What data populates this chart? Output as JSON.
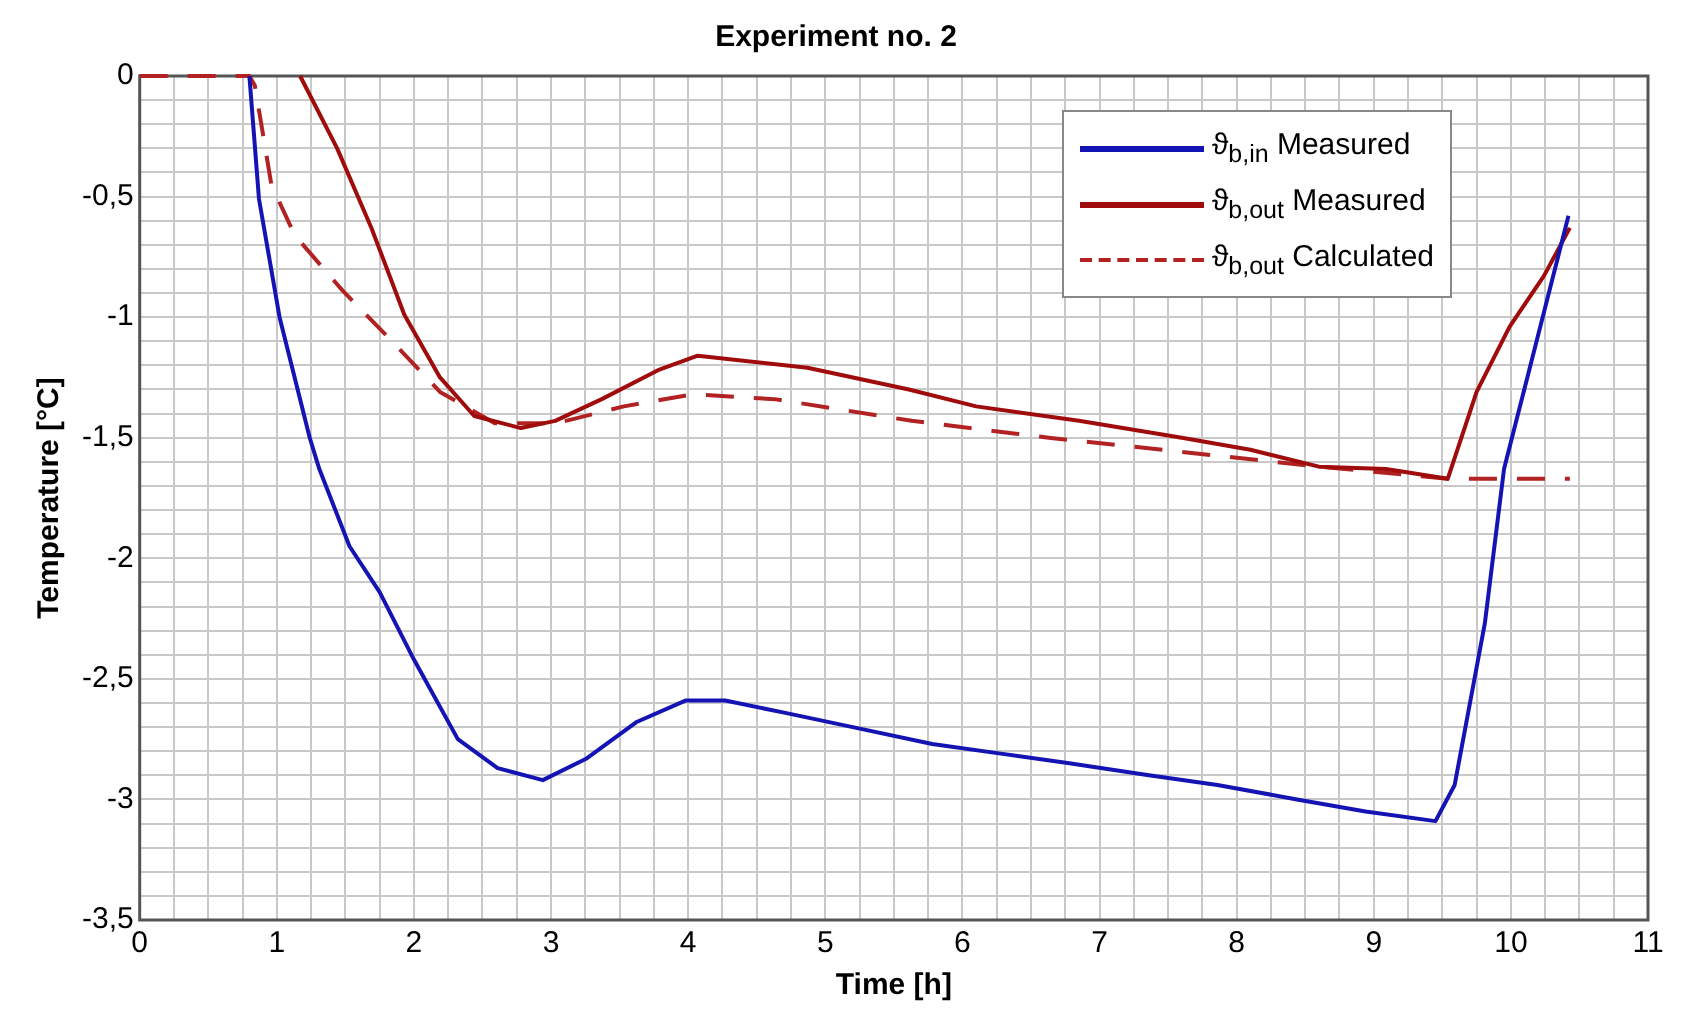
{
  "chart_data": {
    "type": "line",
    "title": "Experiment no. 2",
    "xlabel": "Time [h]",
    "ylabel": "Temperature [°C]",
    "xlim": [
      0,
      11
    ],
    "ylim": [
      -3.5,
      0
    ],
    "xticks": [
      0,
      {
        "value": 0.25,
        "label": null
      },
      {
        "value": 0.5,
        "label": null
      },
      {
        "value": 0.75,
        "label": null
      },
      1,
      {
        "value": 1.25,
        "label": null
      },
      {
        "value": 1.5,
        "label": null
      },
      {
        "value": 1.75,
        "label": null
      },
      2,
      {
        "value": 2.25,
        "label": null
      },
      {
        "value": 2.5,
        "label": null
      },
      {
        "value": 2.75,
        "label": null
      },
      3,
      {
        "value": 3.25,
        "label": null
      },
      {
        "value": 3.5,
        "label": null
      },
      {
        "value": 3.75,
        "label": null
      },
      4,
      {
        "value": 4.25,
        "label": null
      },
      {
        "value": 4.5,
        "label": null
      },
      {
        "value": 4.75,
        "label": null
      },
      5,
      {
        "value": 5.25,
        "label": null
      },
      {
        "value": 5.5,
        "label": null
      },
      {
        "value": 5.75,
        "label": null
      },
      6,
      {
        "value": 6.25,
        "label": null
      },
      {
        "value": 6.5,
        "label": null
      },
      {
        "value": 6.75,
        "label": null
      },
      7,
      {
        "value": 7.25,
        "label": null
      },
      {
        "value": 7.5,
        "label": null
      },
      {
        "value": 7.75,
        "label": null
      },
      8,
      {
        "value": 8.25,
        "label": null
      },
      {
        "value": 8.5,
        "label": null
      },
      {
        "value": 8.75,
        "label": null
      },
      9,
      {
        "value": 9.25,
        "label": null
      },
      {
        "value": 9.5,
        "label": null
      },
      {
        "value": 9.75,
        "label": null
      },
      10,
      {
        "value": 10.25,
        "label": null
      },
      {
        "value": 10.5,
        "label": null
      },
      {
        "value": 10.75,
        "label": null
      },
      11
    ],
    "yticks": [
      {
        "value": -3.5,
        "label": "-3,5"
      },
      {
        "value": -3.4,
        "label": null
      },
      {
        "value": -3.3,
        "label": null
      },
      {
        "value": -3.2,
        "label": null
      },
      {
        "value": -3.1,
        "label": null
      },
      {
        "value": -3,
        "label": "-3"
      },
      {
        "value": -2.9,
        "label": null
      },
      {
        "value": -2.8,
        "label": null
      },
      {
        "value": -2.7,
        "label": null
      },
      {
        "value": -2.6,
        "label": null
      },
      {
        "value": -2.5,
        "label": "-2,5"
      },
      {
        "value": -2.4,
        "label": null
      },
      {
        "value": -2.3,
        "label": null
      },
      {
        "value": -2.2,
        "label": null
      },
      {
        "value": -2.1,
        "label": null
      },
      {
        "value": -2,
        "label": "-2"
      },
      {
        "value": -1.9,
        "label": null
      },
      {
        "value": -1.8,
        "label": null
      },
      {
        "value": -1.7,
        "label": null
      },
      {
        "value": -1.6,
        "label": null
      },
      {
        "value": -1.5,
        "label": "-1,5"
      },
      {
        "value": -1.4,
        "label": null
      },
      {
        "value": -1.3,
        "label": null
      },
      {
        "value": -1.2,
        "label": null
      },
      {
        "value": -1.1,
        "label": null
      },
      {
        "value": -1,
        "label": "-1"
      },
      {
        "value": -0.9,
        "label": null
      },
      {
        "value": -0.8,
        "label": null
      },
      {
        "value": -0.7,
        "label": null
      },
      {
        "value": -0.6,
        "label": null
      },
      {
        "value": -0.5,
        "label": "-0,5"
      },
      {
        "value": -0.4,
        "label": null
      },
      {
        "value": -0.3,
        "label": null
      },
      {
        "value": -0.2,
        "label": null
      },
      {
        "value": -0.1,
        "label": null
      },
      0
    ],
    "grid": true,
    "legend": "top right",
    "marker": "none",
    "series": [
      {
        "name": "ϑ$_{b,in}$ Measured",
        "color": "#1414b4",
        "line_style": "solid",
        "x": [
          0.8,
          0.87,
          1.02,
          1.24,
          1.31,
          1.53,
          1.75,
          2.0,
          2.32,
          2.61,
          2.94,
          3.26,
          3.62,
          3.98,
          4.27,
          4.7,
          5.2,
          5.78,
          6.28,
          6.78,
          7.36,
          7.86,
          8.44,
          8.94,
          9.45,
          9.59,
          9.81,
          9.95,
          10.42
        ],
        "values": [
          0,
          -0.51,
          -1.0,
          -1.5,
          -1.63,
          -1.95,
          -2.14,
          -2.42,
          -2.75,
          -2.87,
          -2.92,
          -2.83,
          -2.68,
          -2.59,
          -2.59,
          -2.64,
          -2.7,
          -2.77,
          -2.81,
          -2.85,
          -2.9,
          -2.94,
          -3.0,
          -3.05,
          -3.09,
          -2.94,
          -2.27,
          -1.63,
          -0.58
        ]
      },
      {
        "name": "ϑ$_{b,out}$ Measured",
        "color": "#a00c0c",
        "line_style": "solid",
        "x": [
          1.17,
          1.44,
          1.69,
          1.93,
          2.19,
          2.44,
          2.78,
          3.03,
          3.37,
          3.78,
          4.07,
          4.87,
          5.61,
          6.1,
          6.85,
          7.6,
          8.1,
          8.6,
          9.09,
          9.54,
          9.75,
          9.99,
          10.24,
          10.43
        ],
        "values": [
          0,
          -0.3,
          -0.63,
          -0.99,
          -1.25,
          -1.41,
          -1.46,
          -1.43,
          -1.34,
          -1.22,
          -1.16,
          -1.21,
          -1.3,
          -1.37,
          -1.43,
          -1.5,
          -1.55,
          -1.62,
          -1.63,
          -1.67,
          -1.31,
          -1.04,
          -0.83,
          -0.63
        ]
      },
      {
        "name": "ϑ$_{b,out}$ Calculated",
        "color": "#b22222",
        "line_style": "dashed",
        "x": [
          0,
          0.8,
          0.84,
          0.96,
          1.13,
          1.48,
          1.84,
          2.19,
          2.59,
          3.04,
          3.53,
          4.03,
          4.63,
          5.63,
          6.63,
          7.62,
          8.6,
          9.54,
          10.43
        ],
        "values": [
          0,
          0,
          -0.04,
          -0.45,
          -0.66,
          -0.89,
          -1.1,
          -1.31,
          -1.44,
          -1.44,
          -1.37,
          -1.32,
          -1.34,
          -1.43,
          -1.5,
          -1.56,
          -1.62,
          -1.67,
          -1.67
        ]
      }
    ]
  }
}
